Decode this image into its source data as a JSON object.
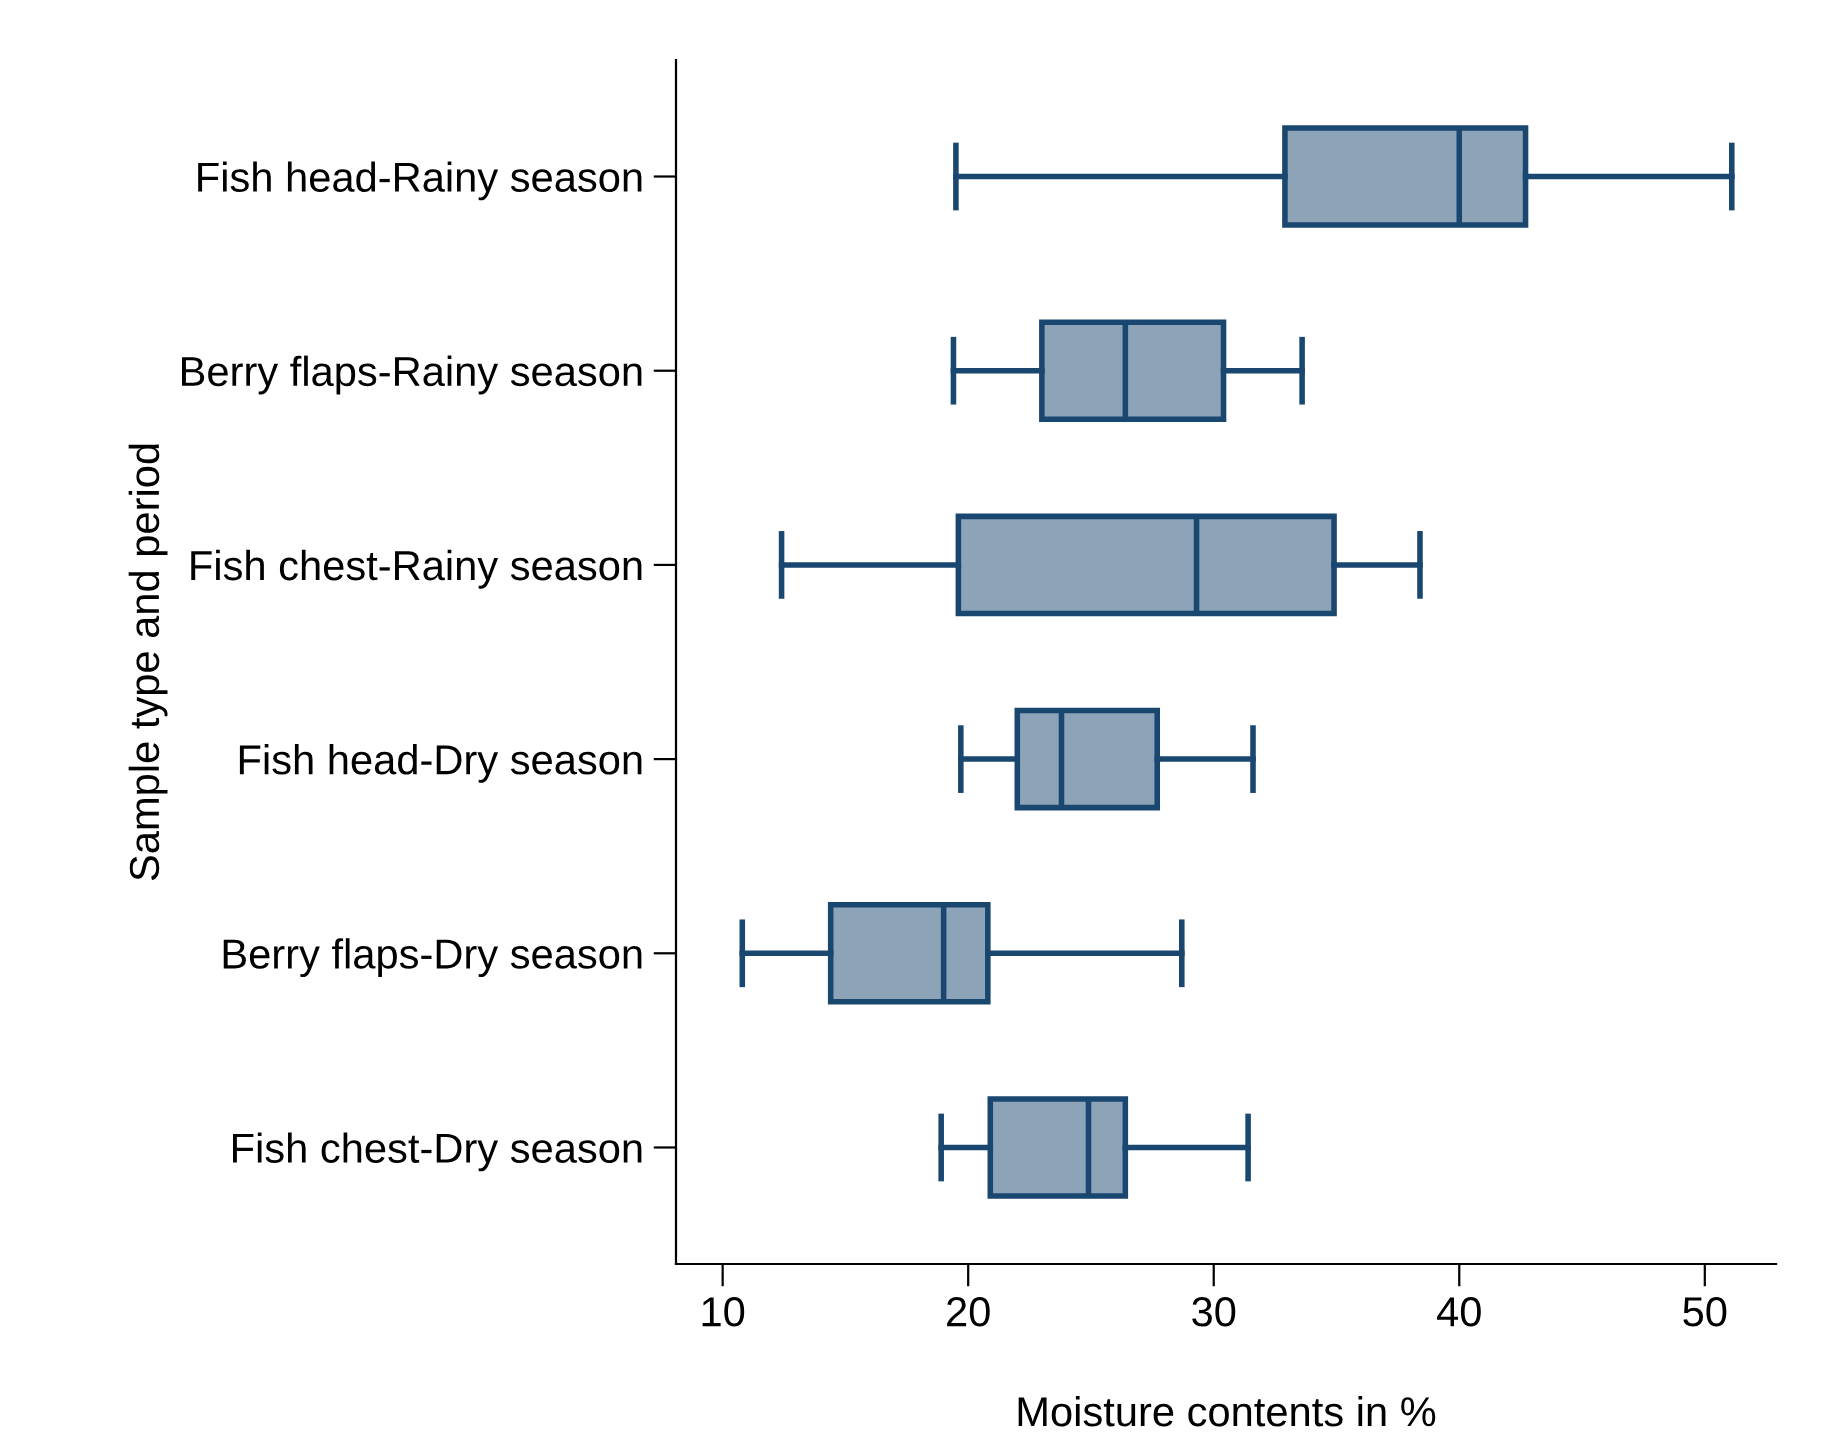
{
  "chart_data": {
    "type": "box",
    "orientation": "horizontal",
    "xlabel": "Moisture contents in %",
    "ylabel": "Sample type and period",
    "categories": [
      "Fish head-Rainy season",
      "Berry flaps-Rainy season",
      "Fish chest-Rainy season",
      "Fish head-Dry season",
      "Berry flaps-Dry season",
      "Fish chest-Dry season"
    ],
    "series": [
      {
        "color": "#8da3b8",
        "boxes": [
          {
            "low": 19.5,
            "q1": 32.9,
            "median": 40.0,
            "q3": 42.7,
            "high": 51.1
          },
          {
            "low": 19.4,
            "q1": 23.0,
            "median": 26.4,
            "q3": 30.4,
            "high": 33.6
          },
          {
            "low": 12.4,
            "q1": 19.6,
            "median": 29.3,
            "q3": 34.9,
            "high": 38.4
          },
          {
            "low": 19.7,
            "q1": 22.0,
            "median": 23.8,
            "q3": 27.7,
            "high": 31.6
          },
          {
            "low": 10.8,
            "q1": 14.4,
            "median": 19.0,
            "q3": 20.8,
            "high": 28.7
          },
          {
            "low": 18.9,
            "q1": 20.9,
            "median": 24.9,
            "q3": 26.4,
            "high": 31.4
          }
        ]
      }
    ],
    "xlim": [
      8.1,
      52.9
    ],
    "xticks": [
      10,
      20,
      30,
      40,
      50
    ],
    "grid": false,
    "legend": false
  }
}
